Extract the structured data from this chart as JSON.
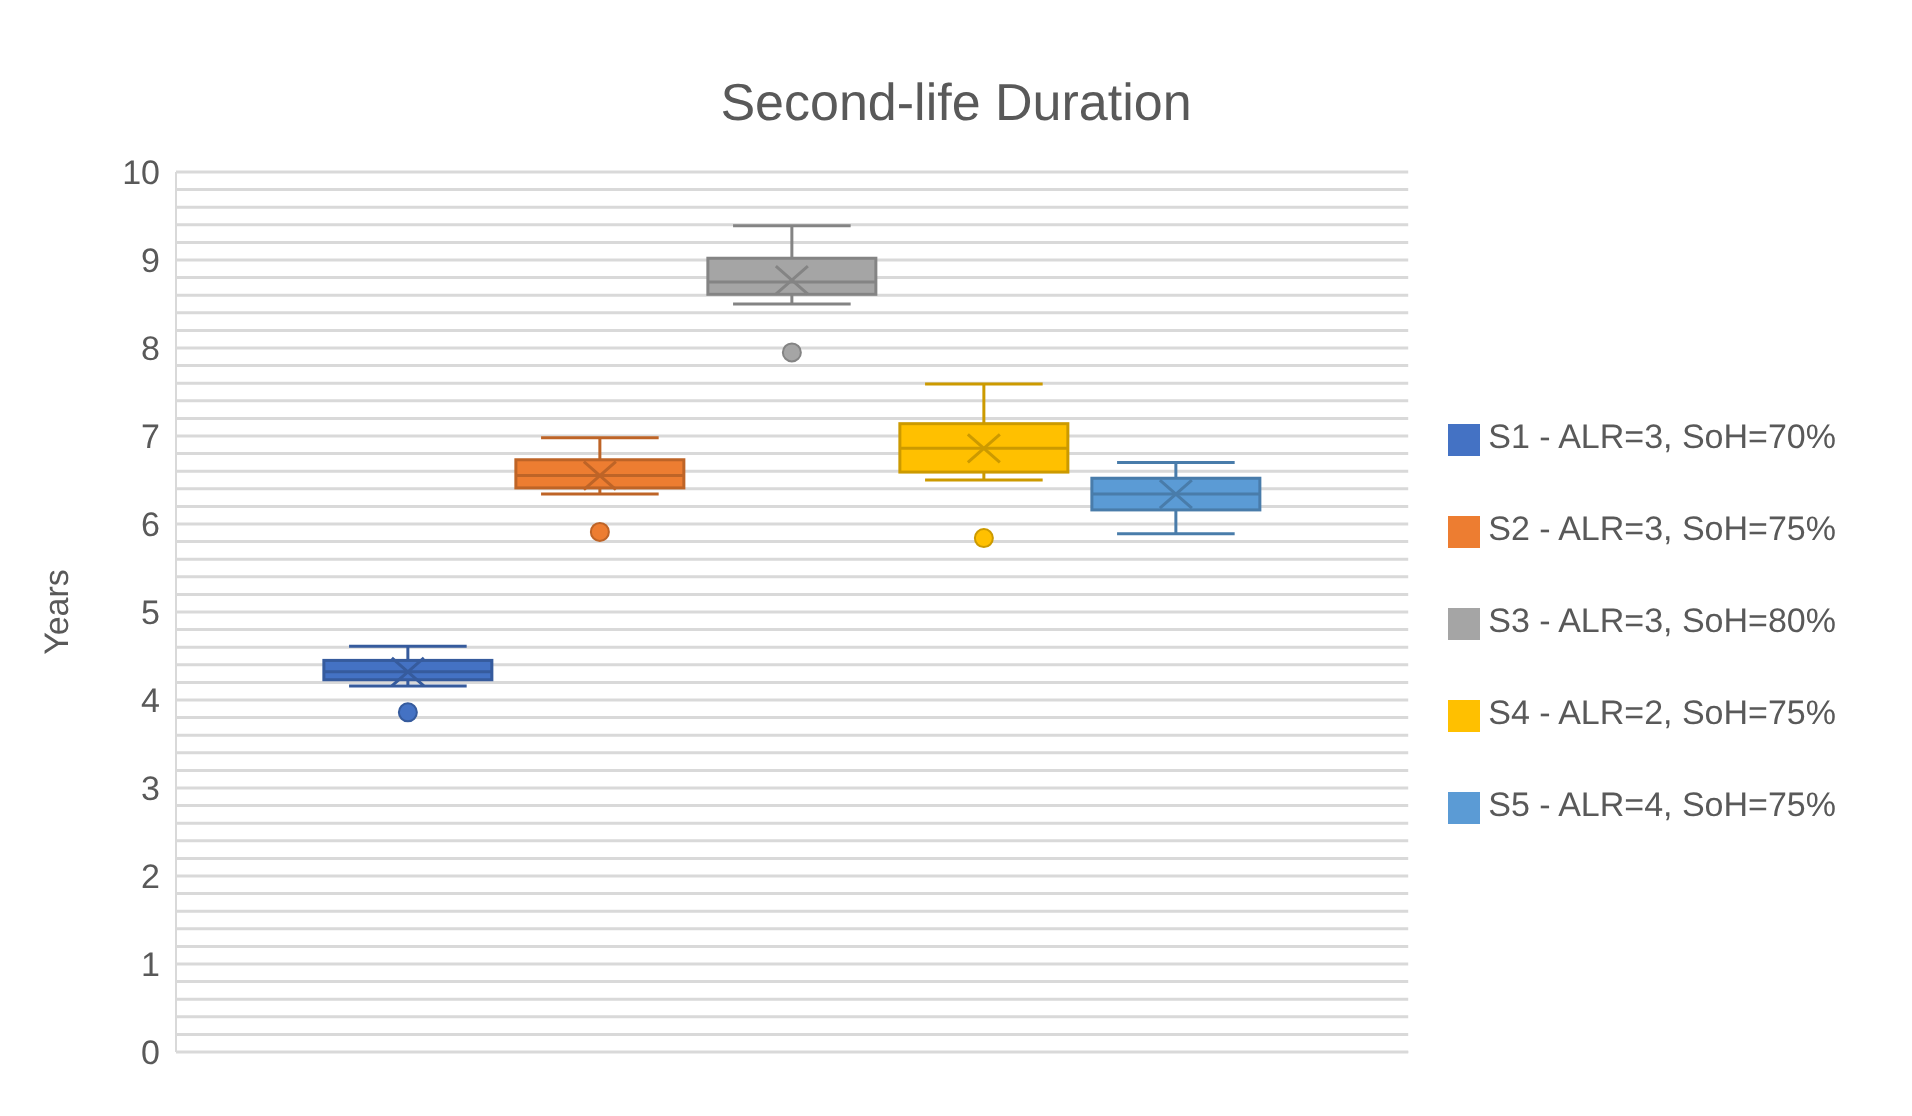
{
  "chart_data": {
    "type": "box",
    "title": "Second-life Duration",
    "ylabel": "Years",
    "categories": [
      null
    ],
    "ylim": [
      0,
      10
    ],
    "yticks": [
      0,
      {
        "value": 0.2,
        "label": null
      },
      {
        "value": 0.4,
        "label": null
      },
      {
        "value": 0.6,
        "label": null
      },
      {
        "value": 0.8,
        "label": null
      },
      1,
      {
        "value": 1.2,
        "label": null
      },
      {
        "value": 1.4,
        "label": null
      },
      {
        "value": 1.6,
        "label": null
      },
      {
        "value": 1.8,
        "label": null
      },
      2,
      {
        "value": 2.2,
        "label": null
      },
      {
        "value": 2.4,
        "label": null
      },
      {
        "value": 2.6,
        "label": null
      },
      {
        "value": 2.8,
        "label": null
      },
      3,
      {
        "value": 3.2,
        "label": null
      },
      {
        "value": 3.4,
        "label": null
      },
      {
        "value": 3.6,
        "label": null
      },
      {
        "value": 3.8,
        "label": null
      },
      4,
      {
        "value": 4.2,
        "label": null
      },
      {
        "value": 4.4,
        "label": null
      },
      {
        "value": 4.6,
        "label": null
      },
      {
        "value": 4.8,
        "label": null
      },
      5,
      {
        "value": 5.2,
        "label": null
      },
      {
        "value": 5.4,
        "label": null
      },
      {
        "value": 5.6,
        "label": null
      },
      {
        "value": 5.8,
        "label": null
      },
      6,
      {
        "value": 6.2,
        "label": null
      },
      {
        "value": 6.4,
        "label": null
      },
      {
        "value": 6.6,
        "label": null
      },
      {
        "value": 6.8,
        "label": null
      },
      7,
      {
        "value": 7.2,
        "label": null
      },
      {
        "value": 7.4,
        "label": null
      },
      {
        "value": 7.6,
        "label": null
      },
      {
        "value": 7.8,
        "label": null
      },
      8,
      {
        "value": 8.2,
        "label": null
      },
      {
        "value": 8.4,
        "label": null
      },
      {
        "value": 8.6,
        "label": null
      },
      {
        "value": 8.8,
        "label": null
      },
      9,
      {
        "value": 9.2,
        "label": null
      },
      {
        "value": 9.4,
        "label": null
      },
      {
        "value": 9.6,
        "label": null
      },
      {
        "value": 9.8,
        "label": null
      },
      10
    ],
    "grid": "y",
    "legend": "right",
    "series": [
      {
        "name": "S1 - ALR=3, SoH=70%",
        "color": "#4472c4",
        "boxes": [
          {
            "low": 4.16,
            "q1": 4.23,
            "median": 4.32,
            "q3": 4.45,
            "high": 4.61,
            "mean": 4.32,
            "outliers": [
              3.86
            ]
          }
        ]
      },
      {
        "name": "S2 - ALR=3, SoH=75%",
        "color": "#ed7d31",
        "boxes": [
          {
            "low": 6.34,
            "q1": 6.41,
            "median": 6.55,
            "q3": 6.73,
            "high": 6.98,
            "mean": 6.55,
            "outliers": [
              5.91
            ]
          }
        ]
      },
      {
        "name": "S3 - ALR=3, SoH=80%",
        "color": "#a5a5a5",
        "boxes": [
          {
            "low": 8.5,
            "q1": 8.61,
            "median": 8.75,
            "q3": 9.02,
            "high": 9.39,
            "mean": 8.77,
            "outliers": [
              7.95
            ]
          }
        ]
      },
      {
        "name": "S4 - ALR=2, SoH=75%",
        "color": "#ffc000",
        "boxes": [
          {
            "low": 6.5,
            "q1": 6.59,
            "median": 6.86,
            "q3": 7.14,
            "high": 7.59,
            "mean": 6.86,
            "outliers": [
              5.84
            ]
          }
        ]
      },
      {
        "name": "S5 - ALR=4, SoH=75%",
        "color": "#5b9bd5",
        "boxes": [
          {
            "low": 5.89,
            "q1": 6.16,
            "median": 6.34,
            "q3": 6.52,
            "high": 6.7,
            "mean": 6.34
          }
        ]
      }
    ]
  }
}
